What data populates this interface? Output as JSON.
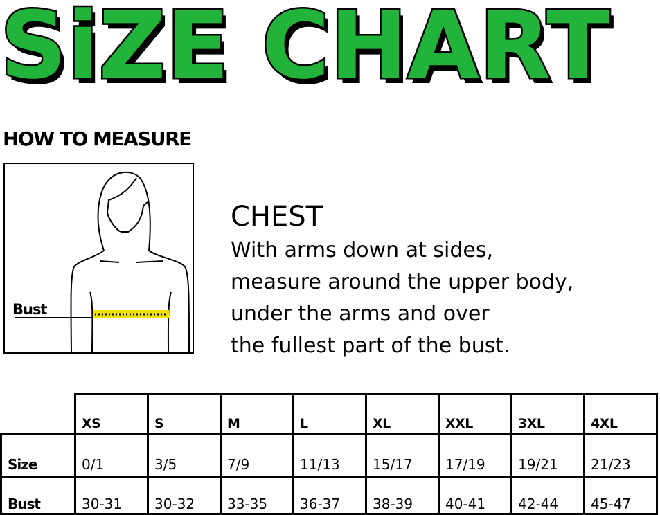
{
  "title": "SiZE CHART",
  "how_to_measure": "HOW TO MEASURE",
  "figure": {
    "bust_label": "Bust",
    "tape_color": "#f2e000"
  },
  "chest": {
    "title": "CHEST",
    "lines": [
      "With arms down at sides,",
      "measure around the upper body,",
      "under the arms and over",
      "the fullest part of the bust."
    ]
  },
  "table": {
    "headers": [
      "XS",
      "S",
      "M",
      "L",
      "XL",
      "XXL",
      "3XL",
      "4XL"
    ],
    "rows": [
      {
        "label": "Size",
        "values": [
          "0/1",
          "3/5",
          "7/9",
          "11/13",
          "15/17",
          "17/19",
          "19/21",
          "21/23"
        ]
      },
      {
        "label": "Bust",
        "values": [
          "30-31",
          "30-32",
          "33-35",
          "36-37",
          "38-39",
          "40-41",
          "42-44",
          "45-47"
        ]
      }
    ]
  },
  "colors": {
    "title_green": "#22b33a"
  }
}
